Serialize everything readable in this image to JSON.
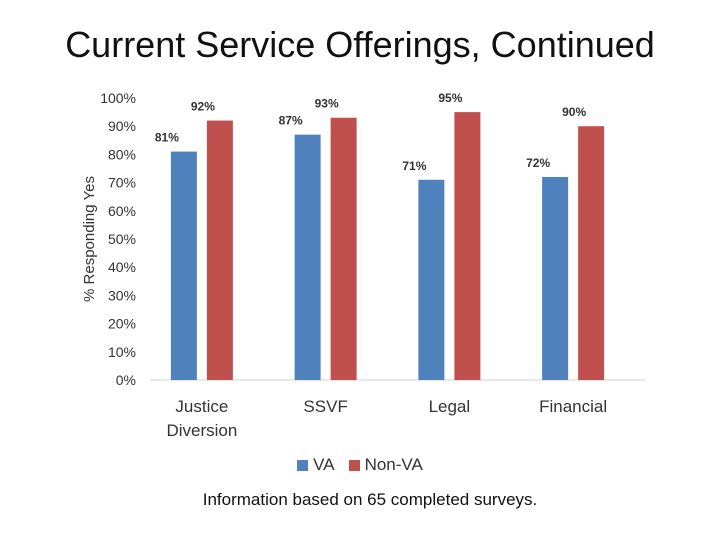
{
  "title": "Current Service Offerings, Continued",
  "footnote": "Information based on 65 completed surveys.",
  "chart_data": {
    "type": "bar",
    "ylabel": "% Responding Yes",
    "xlabel": "",
    "ylim": [
      0,
      100
    ],
    "yticks": [
      0,
      10,
      20,
      30,
      40,
      50,
      60,
      70,
      80,
      90,
      100
    ],
    "ytick_suffix": "%",
    "categories": [
      "Justice Diversion",
      "SSVF",
      "Legal",
      "Financial"
    ],
    "category_lines": [
      [
        "Justice",
        "Diversion"
      ],
      [
        "SSVF"
      ],
      [
        "Legal"
      ],
      [
        "Financial"
      ]
    ],
    "series": [
      {
        "name": "VA",
        "color": "#4f81bd",
        "values": [
          81,
          87,
          71,
          72
        ]
      },
      {
        "name": "Non-VA",
        "color": "#c0504d",
        "values": [
          92,
          93,
          95,
          90
        ]
      }
    ],
    "legend_position": "bottom",
    "grid": false
  }
}
